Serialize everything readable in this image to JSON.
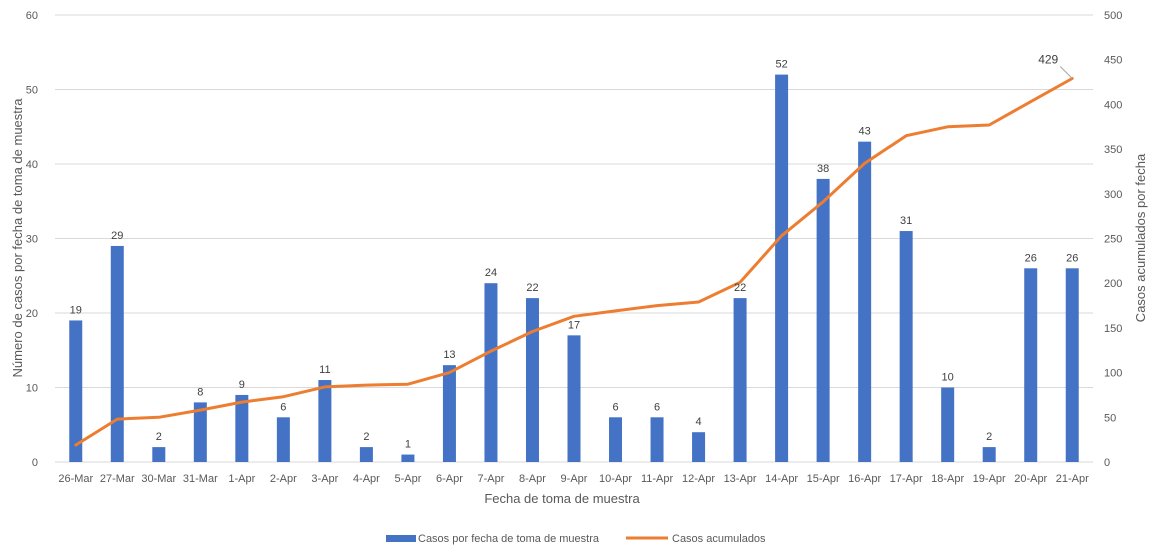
{
  "chart_data": {
    "type": "bar",
    "categories": [
      "26-Mar",
      "27-Mar",
      "30-Mar",
      "31-Mar",
      "1-Apr",
      "2-Apr",
      "3-Apr",
      "4-Apr",
      "5-Apr",
      "6-Apr",
      "7-Apr",
      "8-Apr",
      "9-Apr",
      "10-Apr",
      "11-Apr",
      "12-Apr",
      "13-Apr",
      "14-Apr",
      "15-Apr",
      "16-Apr",
      "17-Apr",
      "18-Apr",
      "19-Apr",
      "20-Apr",
      "21-Apr"
    ],
    "series": [
      {
        "name": "Casos por fecha de toma de muestra",
        "type": "bar",
        "axis": "left",
        "color": "#4472C4",
        "values": [
          19,
          29,
          2,
          8,
          9,
          6,
          11,
          2,
          1,
          13,
          24,
          22,
          17,
          6,
          6,
          4,
          22,
          52,
          38,
          43,
          31,
          10,
          2,
          26,
          26
        ]
      },
      {
        "name": "Casos acumulados",
        "type": "line",
        "axis": "right",
        "color": "#ED7D31",
        "values": [
          19,
          48,
          50,
          58,
          67,
          73,
          84,
          86,
          87,
          100,
          124,
          146,
          163,
          169,
          175,
          179,
          201,
          253,
          291,
          334,
          365,
          375,
          377,
          403,
          429
        ]
      }
    ],
    "xlabel": "Fecha de toma de muestra",
    "ylabel": "Número de casos por fecha de toma de muestra",
    "y2label": "Casos acumulados por fecha",
    "ylim": [
      0,
      60
    ],
    "y2lim": [
      0,
      500
    ],
    "yticks": [
      0,
      10,
      20,
      30,
      40,
      50,
      60
    ],
    "y2ticks": [
      0,
      50,
      100,
      150,
      200,
      250,
      300,
      350,
      400,
      450,
      500
    ],
    "callout": "429",
    "grid": true,
    "legend": "bottom"
  }
}
